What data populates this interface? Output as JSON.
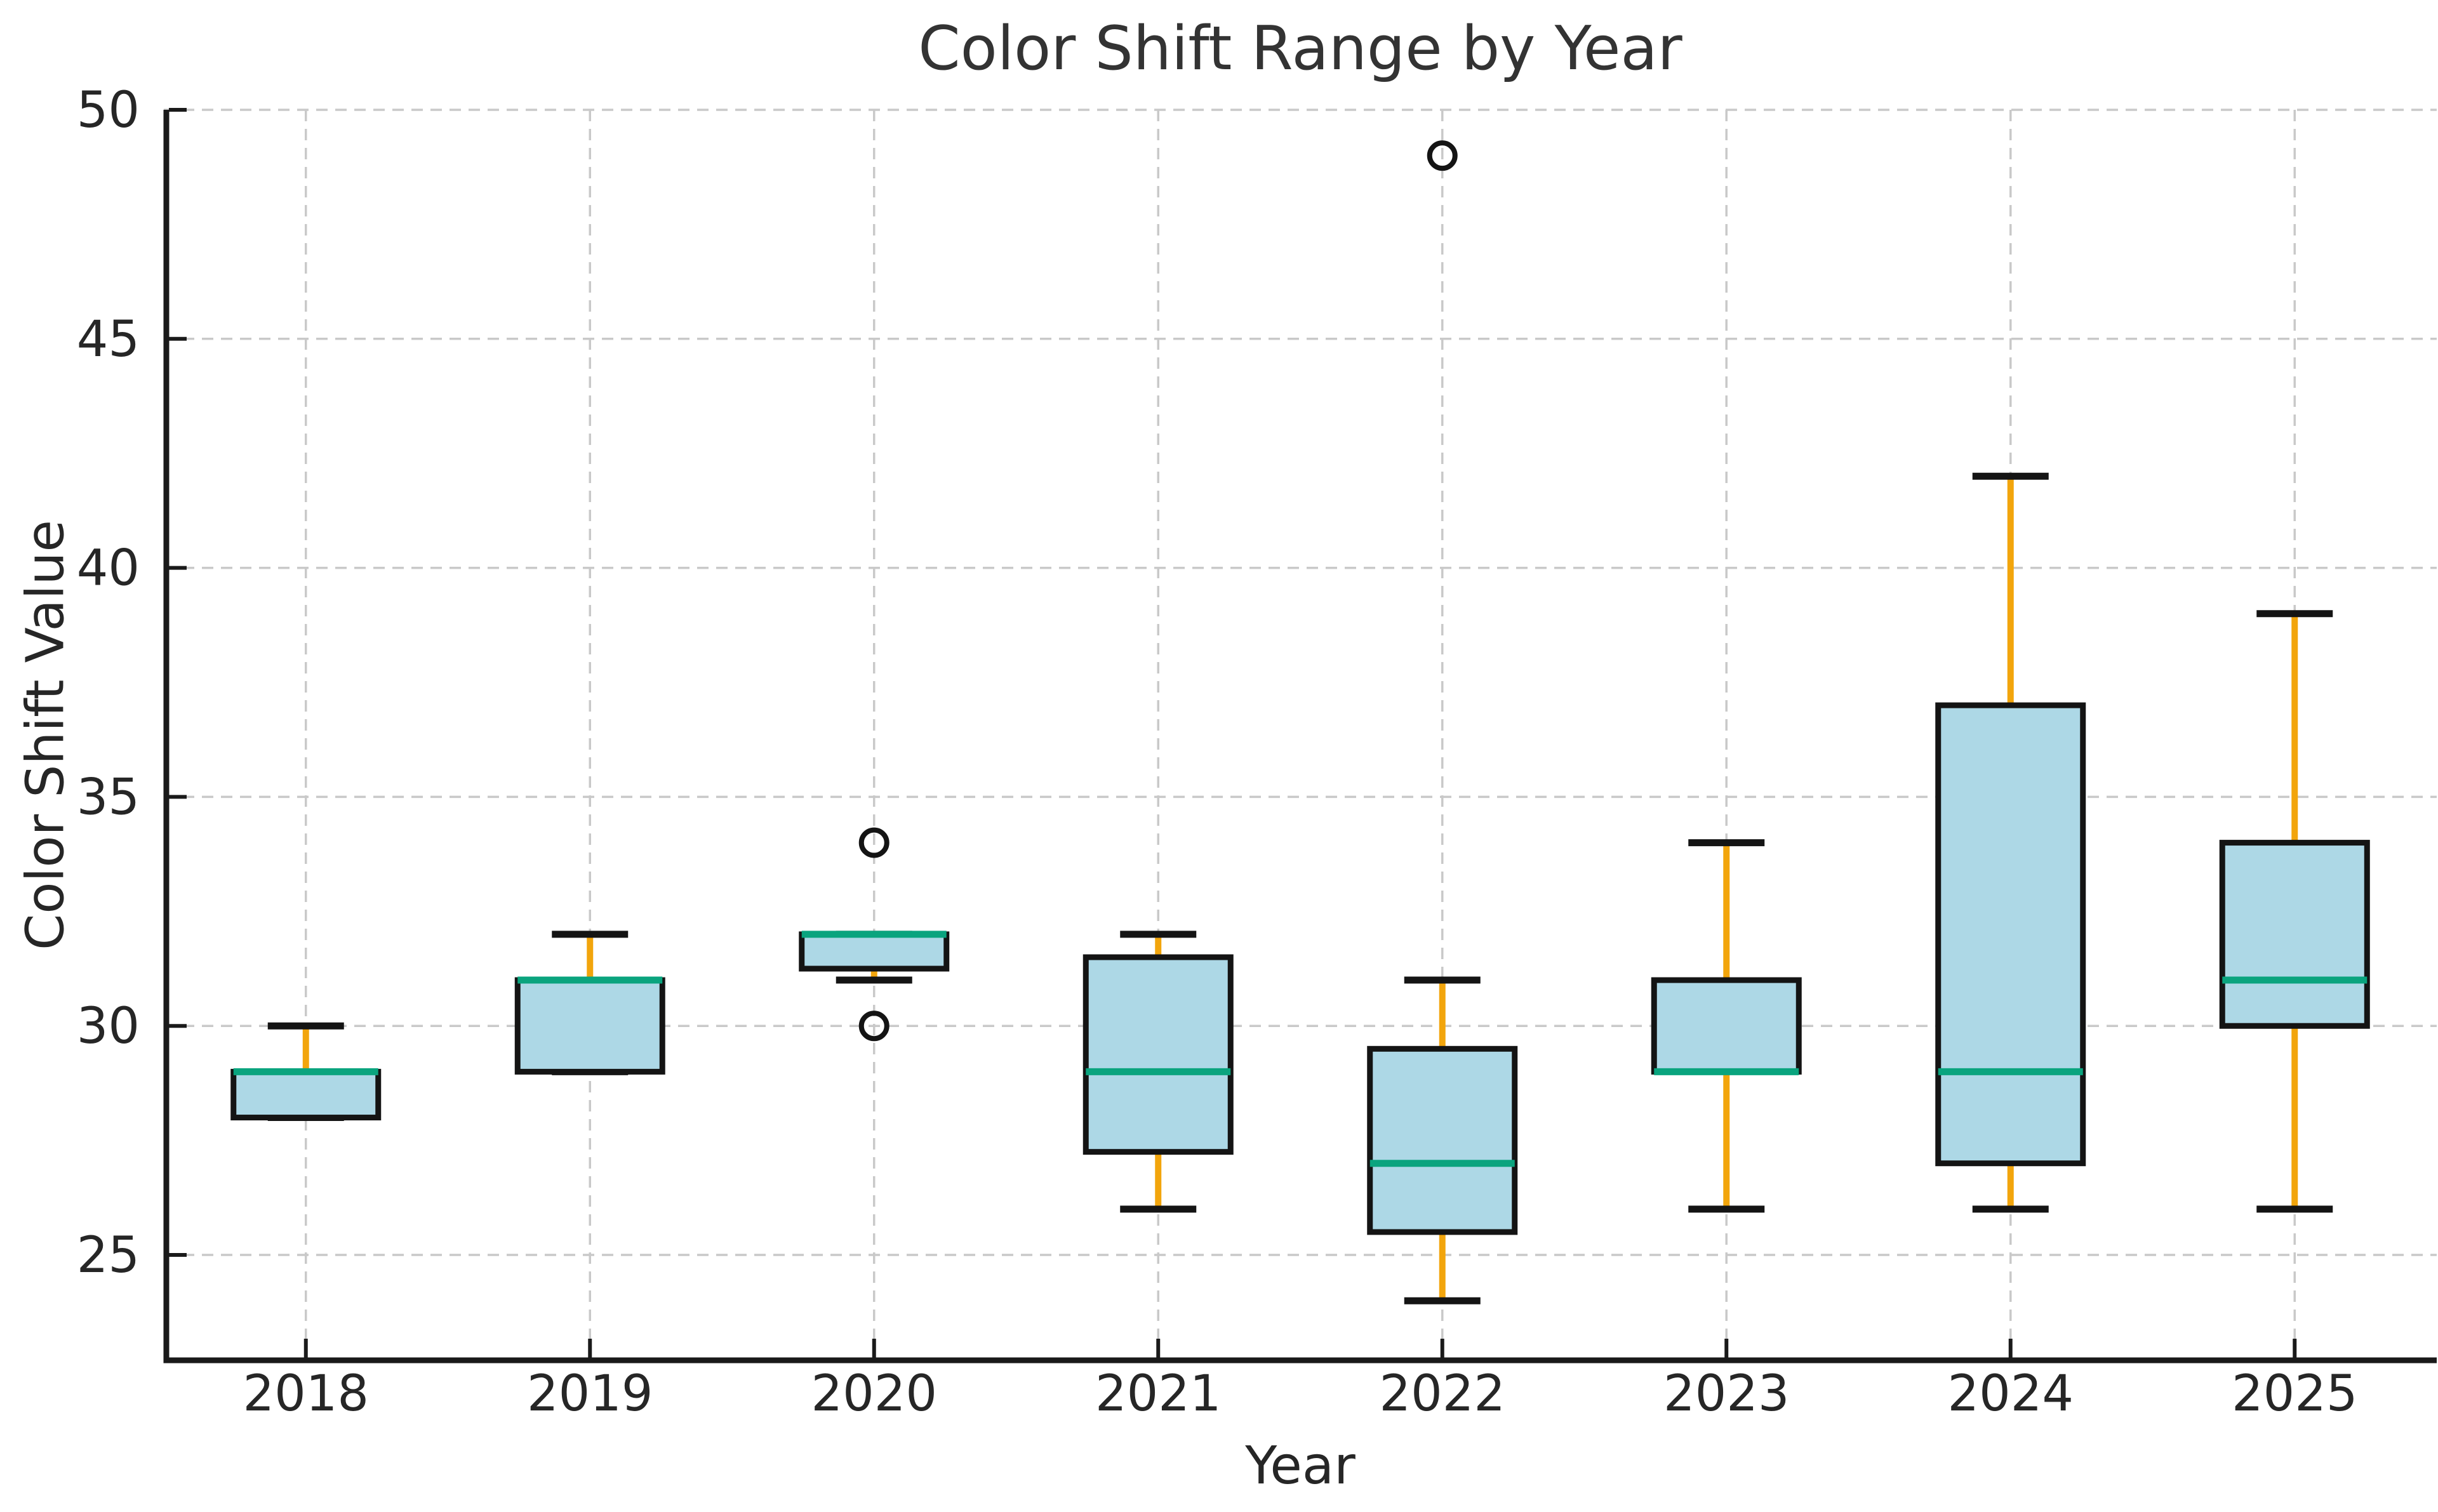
{
  "chart_data": {
    "type": "box",
    "title": "Color Shift Range by Year",
    "xlabel": "Year",
    "ylabel": "Color Shift Value",
    "categories": [
      "2018",
      "2019",
      "2020",
      "2021",
      "2022",
      "2023",
      "2024",
      "2025"
    ],
    "y_ticks": [
      25,
      30,
      35,
      40,
      45,
      50
    ],
    "ylim": [
      22.7,
      50
    ],
    "grid": true,
    "legend": false,
    "boxes": [
      {
        "category": "2018",
        "whisker_low": 28,
        "q1": 28,
        "median": 29,
        "q3": 29,
        "whisker_high": 30,
        "outliers": []
      },
      {
        "category": "2019",
        "whisker_low": 29,
        "q1": 29,
        "median": 31,
        "q3": 31,
        "whisker_high": 32,
        "outliers": []
      },
      {
        "category": "2020",
        "whisker_low": 31,
        "q1": 31.25,
        "median": 32,
        "q3": 32,
        "whisker_high": 32,
        "outliers": [
          34,
          30
        ]
      },
      {
        "category": "2021",
        "whisker_low": 26,
        "q1": 27.25,
        "median": 29,
        "q3": 31.5,
        "whisker_high": 32,
        "outliers": []
      },
      {
        "category": "2022",
        "whisker_low": 24,
        "q1": 25.5,
        "median": 27,
        "q3": 29.5,
        "whisker_high": 31,
        "outliers": [
          49
        ]
      },
      {
        "category": "2023",
        "whisker_low": 26,
        "q1": 29,
        "median": 29,
        "q3": 31,
        "whisker_high": 34,
        "outliers": []
      },
      {
        "category": "2024",
        "whisker_low": 26,
        "q1": 27,
        "median": 29,
        "q3": 37,
        "whisker_high": 42,
        "outliers": []
      },
      {
        "category": "2025",
        "whisker_low": 26,
        "q1": 30,
        "median": 31,
        "q3": 34,
        "whisker_high": 39,
        "outliers": []
      }
    ],
    "colors": {
      "box_fill": "#ADD8E6",
      "box_edge": "#141414",
      "median": "#0AA47E",
      "whisker": "#F2A50C",
      "cap": "#141414",
      "outlier_edge": "#141414",
      "grid": "#C9C9C9",
      "spine": "#1A1A1A",
      "text": "#262626",
      "background": "#FFFFFF"
    }
  }
}
